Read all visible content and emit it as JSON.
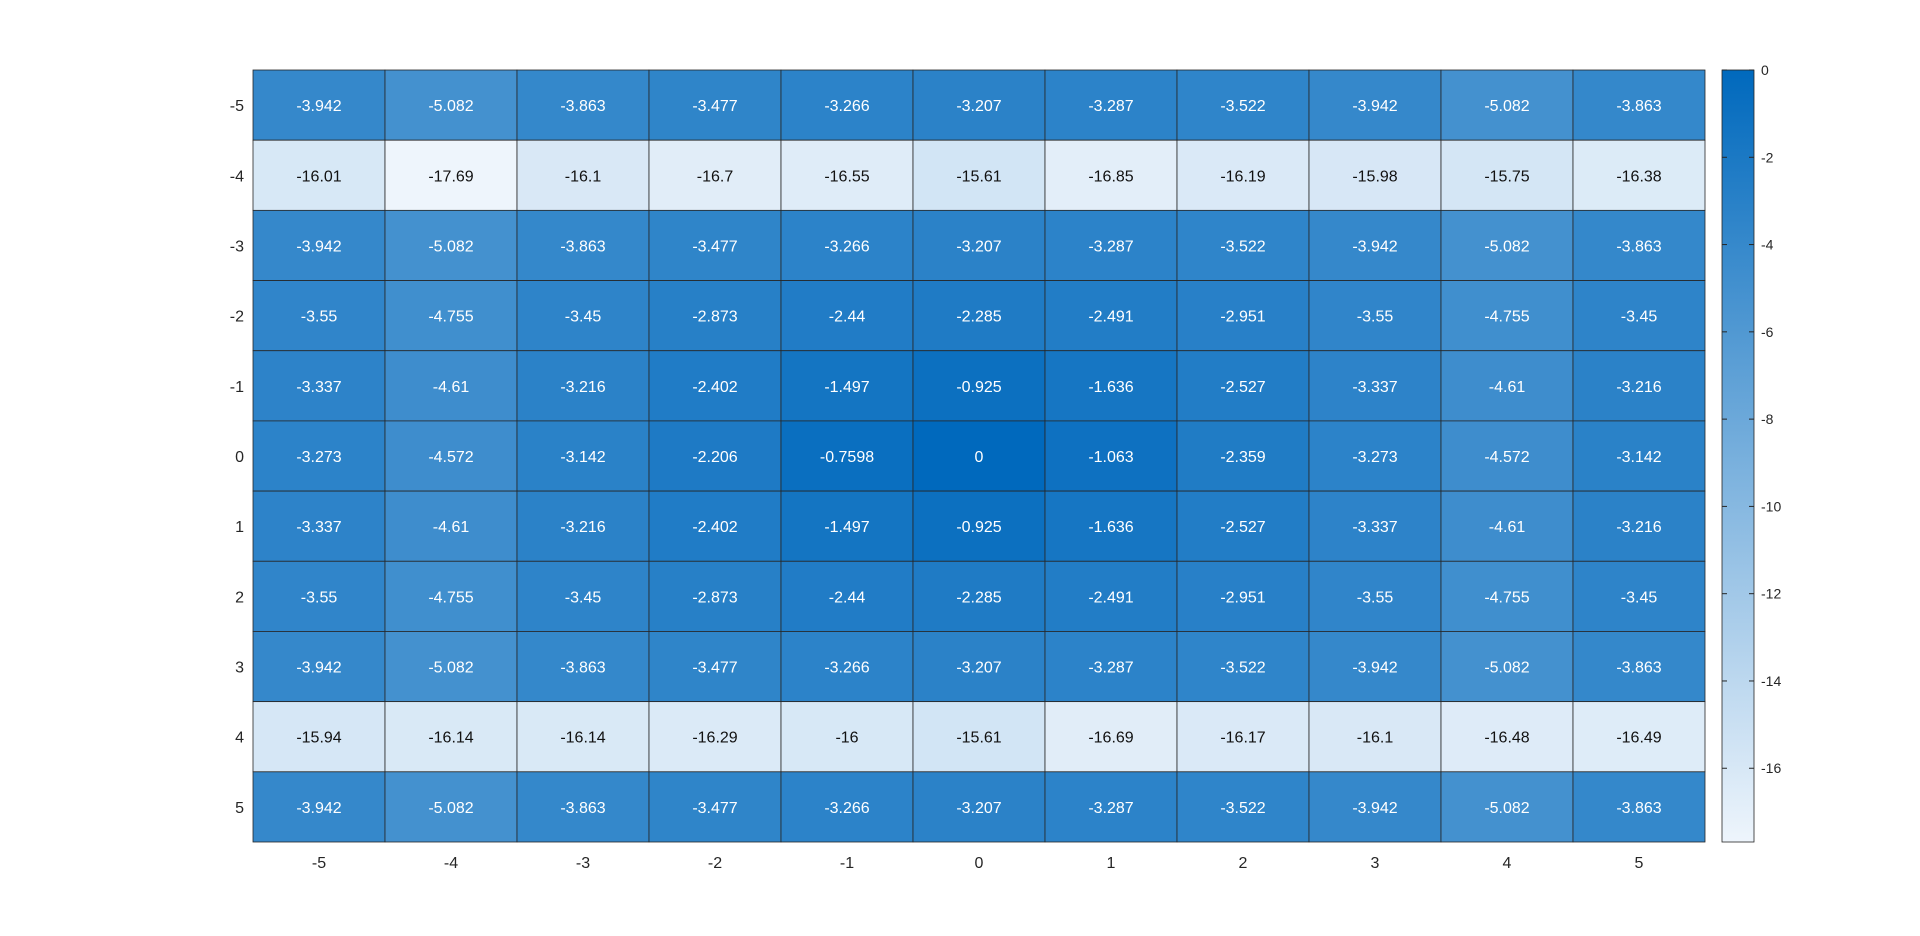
{
  "chart_data": {
    "type": "heatmap",
    "x_labels": [
      "-5",
      "-4",
      "-3",
      "-2",
      "-1",
      "0",
      "1",
      "2",
      "3",
      "4",
      "5"
    ],
    "y_labels": [
      "-5",
      "-4",
      "-3",
      "-2",
      "-1",
      "0",
      "1",
      "2",
      "3",
      "4",
      "5"
    ],
    "values": [
      [
        "-3.942",
        "-5.082",
        "-3.863",
        "-3.477",
        "-3.266",
        "-3.207",
        "-3.287",
        "-3.522",
        "-3.942",
        "-5.082",
        "-3.863"
      ],
      [
        "-16.01",
        "-17.69",
        "-16.1",
        "-16.7",
        "-16.55",
        "-15.61",
        "-16.85",
        "-16.19",
        "-15.98",
        "-15.75",
        "-16.38"
      ],
      [
        "-3.942",
        "-5.082",
        "-3.863",
        "-3.477",
        "-3.266",
        "-3.207",
        "-3.287",
        "-3.522",
        "-3.942",
        "-5.082",
        "-3.863"
      ],
      [
        "-3.55",
        "-4.755",
        "-3.45",
        "-2.873",
        "-2.44",
        "-2.285",
        "-2.491",
        "-2.951",
        "-3.55",
        "-4.755",
        "-3.45"
      ],
      [
        "-3.337",
        "-4.61",
        "-3.216",
        "-2.402",
        "-1.497",
        "-0.925",
        "-1.636",
        "-2.527",
        "-3.337",
        "-4.61",
        "-3.216"
      ],
      [
        "-3.273",
        "-4.572",
        "-3.142",
        "-2.206",
        "-0.7598",
        "0",
        "-1.063",
        "-2.359",
        "-3.273",
        "-4.572",
        "-3.142"
      ],
      [
        "-3.337",
        "-4.61",
        "-3.216",
        "-2.402",
        "-1.497",
        "-0.925",
        "-1.636",
        "-2.527",
        "-3.337",
        "-4.61",
        "-3.216"
      ],
      [
        "-3.55",
        "-4.755",
        "-3.45",
        "-2.873",
        "-2.44",
        "-2.285",
        "-2.491",
        "-2.951",
        "-3.55",
        "-4.755",
        "-3.45"
      ],
      [
        "-3.942",
        "-5.082",
        "-3.863",
        "-3.477",
        "-3.266",
        "-3.207",
        "-3.287",
        "-3.522",
        "-3.942",
        "-5.082",
        "-3.863"
      ],
      [
        "-15.94",
        "-16.14",
        "-16.14",
        "-16.29",
        "-16",
        "-15.61",
        "-16.69",
        "-16.17",
        "-16.1",
        "-16.48",
        "-16.49"
      ],
      [
        "-3.942",
        "-5.082",
        "-3.863",
        "-3.477",
        "-3.266",
        "-3.207",
        "-3.287",
        "-3.522",
        "-3.942",
        "-5.082",
        "-3.863"
      ]
    ],
    "color_range": [
      -17.69,
      0
    ],
    "colormap": {
      "low": "#eef5fc",
      "high": "#0069bd"
    },
    "colorbar": {
      "position": "right",
      "ticks": [
        "0",
        "-2",
        "-4",
        "-6",
        "-8",
        "-10",
        "-12",
        "-14",
        "-16"
      ]
    },
    "grid": true,
    "title": "",
    "xlabel": "",
    "ylabel": ""
  }
}
